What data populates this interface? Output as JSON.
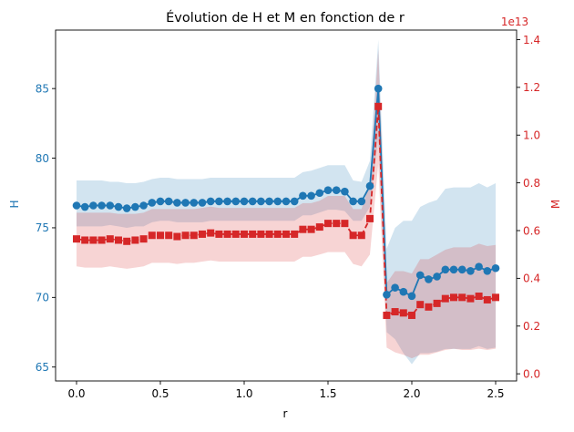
{
  "chart_data": {
    "type": "line",
    "title": "Évolution de H et M en fonction de r",
    "xlabel": "r",
    "xlim": [
      -0.125,
      2.625
    ],
    "x_ticks": [
      0.0,
      0.5,
      1.0,
      1.5,
      2.0,
      2.5
    ],
    "x_tick_labels": [
      "0.0",
      "0.5",
      "1.0",
      "1.5",
      "2.0",
      "2.5"
    ],
    "grid": false,
    "x": [
      0.0,
      0.05,
      0.1,
      0.15,
      0.2,
      0.25,
      0.3,
      0.35,
      0.4,
      0.45,
      0.5,
      0.55,
      0.6,
      0.65,
      0.7,
      0.75,
      0.8,
      0.85,
      0.9,
      0.95,
      1.0,
      1.05,
      1.1,
      1.15,
      1.2,
      1.25,
      1.3,
      1.35,
      1.4,
      1.45,
      1.5,
      1.55,
      1.6,
      1.65,
      1.7,
      1.75,
      1.8,
      1.85,
      1.9,
      1.95,
      2.0,
      2.05,
      2.1,
      2.15,
      2.2,
      2.25,
      2.3,
      2.35,
      2.4,
      2.45,
      2.5
    ],
    "left_axis": {
      "label": "H",
      "color": "#1f77b4",
      "ylim": [
        64.0,
        89.2
      ],
      "ticks": [
        65,
        70,
        75,
        80,
        85
      ],
      "tick_labels": [
        "65",
        "70",
        "75",
        "80",
        "85"
      ]
    },
    "right_axis": {
      "label": "M",
      "color": "#d62728",
      "offset_text": "1e13",
      "ylim": [
        -0.03,
        1.44
      ],
      "ticks": [
        0.0,
        0.2,
        0.4,
        0.6,
        0.8,
        1.0,
        1.2,
        1.4
      ],
      "tick_labels": [
        "0.0",
        "0.2",
        "0.4",
        "0.6",
        "0.8",
        "1.0",
        "1.2",
        "1.4"
      ]
    },
    "series": [
      {
        "axis": "left",
        "color": "#1f77b4",
        "marker": "circle",
        "line_style": "solid",
        "values": [
          76.6,
          76.5,
          76.6,
          76.6,
          76.6,
          76.5,
          76.4,
          76.5,
          76.6,
          76.8,
          76.9,
          76.9,
          76.8,
          76.8,
          76.8,
          76.8,
          76.9,
          76.9,
          76.9,
          76.9,
          76.9,
          76.9,
          76.9,
          76.9,
          76.9,
          76.9,
          76.9,
          77.3,
          77.3,
          77.5,
          77.7,
          77.7,
          77.6,
          76.9,
          76.9,
          78.0,
          85.0,
          70.2,
          70.7,
          70.4,
          70.1,
          71.6,
          71.3,
          71.5,
          72.0,
          72.0,
          72.0,
          71.9,
          72.2,
          71.9,
          72.1
        ],
        "band_lower": [
          75.1,
          75.1,
          75.1,
          75.1,
          75.2,
          75.1,
          75.0,
          75.1,
          75.1,
          75.4,
          75.5,
          75.5,
          75.4,
          75.4,
          75.4,
          75.4,
          75.5,
          75.5,
          75.5,
          75.5,
          75.5,
          75.5,
          75.5,
          75.5,
          75.5,
          75.5,
          75.5,
          75.9,
          75.9,
          76.1,
          76.3,
          76.3,
          76.2,
          75.5,
          75.5,
          76.5,
          81.5,
          67.5,
          67.0,
          66.0,
          65.2,
          66.0,
          66.0,
          66.1,
          66.3,
          66.3,
          66.3,
          66.3,
          66.5,
          66.3,
          66.4
        ],
        "band_upper": [
          78.4,
          78.4,
          78.4,
          78.4,
          78.3,
          78.3,
          78.2,
          78.2,
          78.3,
          78.5,
          78.6,
          78.6,
          78.5,
          78.5,
          78.5,
          78.5,
          78.6,
          78.6,
          78.6,
          78.6,
          78.6,
          78.6,
          78.6,
          78.6,
          78.6,
          78.6,
          78.6,
          79.0,
          79.1,
          79.3,
          79.5,
          79.5,
          79.5,
          78.4,
          78.3,
          79.8,
          88.5,
          73.5,
          75.0,
          75.5,
          75.5,
          76.5,
          76.8,
          77.0,
          77.8,
          77.9,
          77.9,
          77.9,
          78.2,
          77.9,
          78.2
        ]
      },
      {
        "axis": "right",
        "color": "#d62728",
        "marker": "square",
        "line_style": "dashed",
        "values": [
          0.565,
          0.56,
          0.56,
          0.56,
          0.565,
          0.56,
          0.555,
          0.56,
          0.565,
          0.58,
          0.58,
          0.58,
          0.575,
          0.58,
          0.58,
          0.585,
          0.59,
          0.585,
          0.585,
          0.585,
          0.585,
          0.585,
          0.585,
          0.585,
          0.585,
          0.585,
          0.585,
          0.605,
          0.605,
          0.615,
          0.63,
          0.63,
          0.63,
          0.58,
          0.58,
          0.65,
          1.12,
          0.245,
          0.26,
          0.255,
          0.245,
          0.29,
          0.28,
          0.295,
          0.315,
          0.32,
          0.32,
          0.315,
          0.325,
          0.31,
          0.32
        ],
        "band_lower": [
          0.45,
          0.445,
          0.445,
          0.445,
          0.45,
          0.445,
          0.44,
          0.445,
          0.45,
          0.465,
          0.465,
          0.465,
          0.46,
          0.465,
          0.465,
          0.47,
          0.475,
          0.47,
          0.47,
          0.47,
          0.47,
          0.47,
          0.47,
          0.47,
          0.47,
          0.47,
          0.47,
          0.49,
          0.49,
          0.5,
          0.51,
          0.51,
          0.51,
          0.46,
          0.45,
          0.5,
          0.88,
          0.11,
          0.09,
          0.08,
          0.065,
          0.08,
          0.08,
          0.09,
          0.1,
          0.105,
          0.1,
          0.1,
          0.105,
          0.1,
          0.105
        ],
        "band_upper": [
          0.675,
          0.675,
          0.675,
          0.675,
          0.675,
          0.67,
          0.67,
          0.67,
          0.675,
          0.69,
          0.69,
          0.69,
          0.69,
          0.69,
          0.69,
          0.695,
          0.7,
          0.695,
          0.695,
          0.695,
          0.695,
          0.695,
          0.695,
          0.695,
          0.695,
          0.695,
          0.695,
          0.715,
          0.715,
          0.725,
          0.745,
          0.745,
          0.745,
          0.69,
          0.69,
          0.8,
          1.36,
          0.38,
          0.43,
          0.43,
          0.42,
          0.48,
          0.48,
          0.5,
          0.52,
          0.53,
          0.53,
          0.53,
          0.545,
          0.535,
          0.54
        ]
      }
    ]
  }
}
